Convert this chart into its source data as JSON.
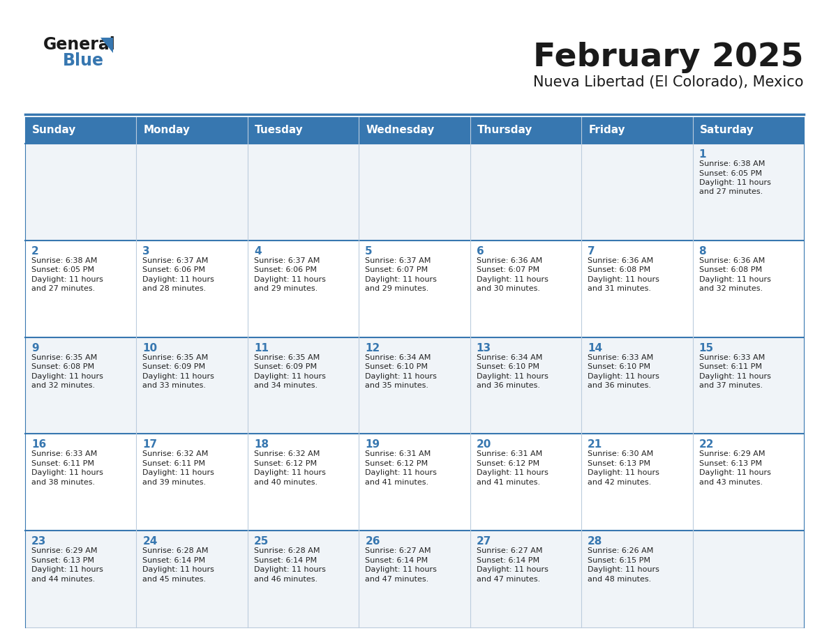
{
  "title": "February 2025",
  "subtitle": "Nueva Libertad (El Colorado), Mexico",
  "header_color": "#3777b0",
  "header_text_color": "#ffffff",
  "cell_bg_odd": "#f0f4f8",
  "cell_bg_even": "#ffffff",
  "border_color": "#3777b0",
  "light_border_color": "#bbccdd",
  "text_color": "#222222",
  "day_num_color": "#3777b0",
  "day_names": [
    "Sunday",
    "Monday",
    "Tuesday",
    "Wednesday",
    "Thursday",
    "Friday",
    "Saturday"
  ],
  "days": [
    {
      "day": 1,
      "col": 6,
      "row": 0,
      "sunrise": "6:38 AM",
      "sunset": "6:05 PM",
      "daylight": "11 hours and 27 minutes."
    },
    {
      "day": 2,
      "col": 0,
      "row": 1,
      "sunrise": "6:38 AM",
      "sunset": "6:05 PM",
      "daylight": "11 hours and 27 minutes."
    },
    {
      "day": 3,
      "col": 1,
      "row": 1,
      "sunrise": "6:37 AM",
      "sunset": "6:06 PM",
      "daylight": "11 hours and 28 minutes."
    },
    {
      "day": 4,
      "col": 2,
      "row": 1,
      "sunrise": "6:37 AM",
      "sunset": "6:06 PM",
      "daylight": "11 hours and 29 minutes."
    },
    {
      "day": 5,
      "col": 3,
      "row": 1,
      "sunrise": "6:37 AM",
      "sunset": "6:07 PM",
      "daylight": "11 hours and 29 minutes."
    },
    {
      "day": 6,
      "col": 4,
      "row": 1,
      "sunrise": "6:36 AM",
      "sunset": "6:07 PM",
      "daylight": "11 hours and 30 minutes."
    },
    {
      "day": 7,
      "col": 5,
      "row": 1,
      "sunrise": "6:36 AM",
      "sunset": "6:08 PM",
      "daylight": "11 hours and 31 minutes."
    },
    {
      "day": 8,
      "col": 6,
      "row": 1,
      "sunrise": "6:36 AM",
      "sunset": "6:08 PM",
      "daylight": "11 hours and 32 minutes."
    },
    {
      "day": 9,
      "col": 0,
      "row": 2,
      "sunrise": "6:35 AM",
      "sunset": "6:08 PM",
      "daylight": "11 hours and 32 minutes."
    },
    {
      "day": 10,
      "col": 1,
      "row": 2,
      "sunrise": "6:35 AM",
      "sunset": "6:09 PM",
      "daylight": "11 hours and 33 minutes."
    },
    {
      "day": 11,
      "col": 2,
      "row": 2,
      "sunrise": "6:35 AM",
      "sunset": "6:09 PM",
      "daylight": "11 hours and 34 minutes."
    },
    {
      "day": 12,
      "col": 3,
      "row": 2,
      "sunrise": "6:34 AM",
      "sunset": "6:10 PM",
      "daylight": "11 hours and 35 minutes."
    },
    {
      "day": 13,
      "col": 4,
      "row": 2,
      "sunrise": "6:34 AM",
      "sunset": "6:10 PM",
      "daylight": "11 hours and 36 minutes."
    },
    {
      "day": 14,
      "col": 5,
      "row": 2,
      "sunrise": "6:33 AM",
      "sunset": "6:10 PM",
      "daylight": "11 hours and 36 minutes."
    },
    {
      "day": 15,
      "col": 6,
      "row": 2,
      "sunrise": "6:33 AM",
      "sunset": "6:11 PM",
      "daylight": "11 hours and 37 minutes."
    },
    {
      "day": 16,
      "col": 0,
      "row": 3,
      "sunrise": "6:33 AM",
      "sunset": "6:11 PM",
      "daylight": "11 hours and 38 minutes."
    },
    {
      "day": 17,
      "col": 1,
      "row": 3,
      "sunrise": "6:32 AM",
      "sunset": "6:11 PM",
      "daylight": "11 hours and 39 minutes."
    },
    {
      "day": 18,
      "col": 2,
      "row": 3,
      "sunrise": "6:32 AM",
      "sunset": "6:12 PM",
      "daylight": "11 hours and 40 minutes."
    },
    {
      "day": 19,
      "col": 3,
      "row": 3,
      "sunrise": "6:31 AM",
      "sunset": "6:12 PM",
      "daylight": "11 hours and 41 minutes."
    },
    {
      "day": 20,
      "col": 4,
      "row": 3,
      "sunrise": "6:31 AM",
      "sunset": "6:12 PM",
      "daylight": "11 hours and 41 minutes."
    },
    {
      "day": 21,
      "col": 5,
      "row": 3,
      "sunrise": "6:30 AM",
      "sunset": "6:13 PM",
      "daylight": "11 hours and 42 minutes."
    },
    {
      "day": 22,
      "col": 6,
      "row": 3,
      "sunrise": "6:29 AM",
      "sunset": "6:13 PM",
      "daylight": "11 hours and 43 minutes."
    },
    {
      "day": 23,
      "col": 0,
      "row": 4,
      "sunrise": "6:29 AM",
      "sunset": "6:13 PM",
      "daylight": "11 hours and 44 minutes."
    },
    {
      "day": 24,
      "col": 1,
      "row": 4,
      "sunrise": "6:28 AM",
      "sunset": "6:14 PM",
      "daylight": "11 hours and 45 minutes."
    },
    {
      "day": 25,
      "col": 2,
      "row": 4,
      "sunrise": "6:28 AM",
      "sunset": "6:14 PM",
      "daylight": "11 hours and 46 minutes."
    },
    {
      "day": 26,
      "col": 3,
      "row": 4,
      "sunrise": "6:27 AM",
      "sunset": "6:14 PM",
      "daylight": "11 hours and 47 minutes."
    },
    {
      "day": 27,
      "col": 4,
      "row": 4,
      "sunrise": "6:27 AM",
      "sunset": "6:14 PM",
      "daylight": "11 hours and 47 minutes."
    },
    {
      "day": 28,
      "col": 5,
      "row": 4,
      "sunrise": "6:26 AM",
      "sunset": "6:15 PM",
      "daylight": "11 hours and 48 minutes."
    }
  ],
  "num_rows": 5,
  "num_cols": 7,
  "title_fontsize": 34,
  "subtitle_fontsize": 15,
  "dayname_fontsize": 11,
  "daynum_fontsize": 11,
  "cell_fontsize": 8
}
